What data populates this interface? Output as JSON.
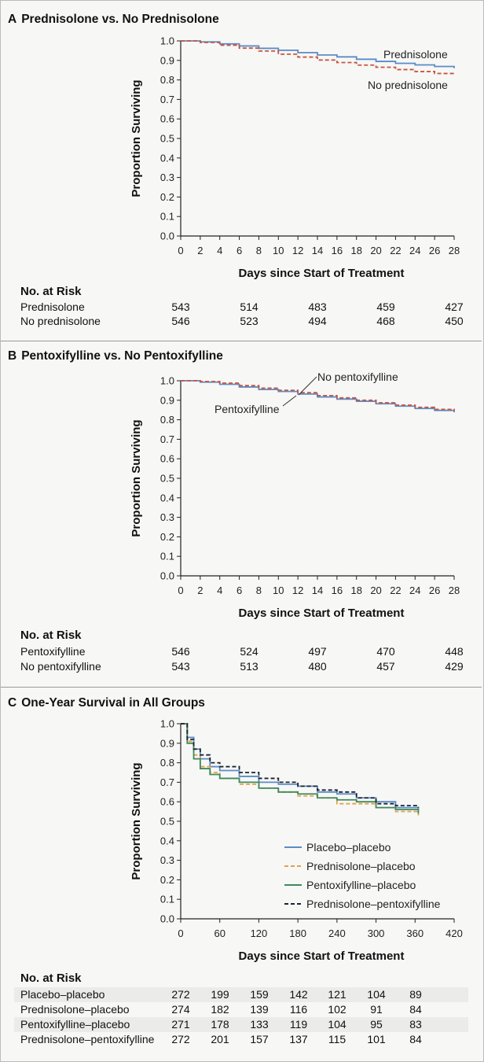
{
  "panels": [
    {
      "id": "A",
      "letter": "A",
      "title": "Prednisolone vs. No Prednisolone",
      "risk_title": "No. at Risk",
      "risk_rows": [
        {
          "label": "Prednisolone",
          "values": [
            "543",
            "514",
            "483",
            "459",
            "427"
          ]
        },
        {
          "label": "No prednisolone",
          "values": [
            "546",
            "523",
            "494",
            "468",
            "450"
          ]
        }
      ]
    },
    {
      "id": "B",
      "letter": "B",
      "title": "Pentoxifylline vs. No Pentoxifylline",
      "risk_title": "No. at Risk",
      "risk_rows": [
        {
          "label": "Pentoxifylline",
          "values": [
            "546",
            "524",
            "497",
            "470",
            "448"
          ]
        },
        {
          "label": "No pentoxifylline",
          "values": [
            "543",
            "513",
            "480",
            "457",
            "429"
          ]
        }
      ]
    },
    {
      "id": "C",
      "letter": "C",
      "title": "One-Year Survival in All Groups",
      "risk_title": "No. at Risk",
      "risk_rows": [
        {
          "label": "Placebo–placebo",
          "values": [
            "272",
            "199",
            "159",
            "142",
            "121",
            "104",
            "89"
          ]
        },
        {
          "label": "Prednisolone–placebo",
          "values": [
            "274",
            "182",
            "139",
            "116",
            "102",
            "91",
            "84"
          ]
        },
        {
          "label": "Pentoxifylline–placebo",
          "values": [
            "271",
            "178",
            "133",
            "119",
            "104",
            "95",
            "83"
          ]
        },
        {
          "label": "Prednisolone–pentoxifylline",
          "values": [
            "272",
            "201",
            "157",
            "137",
            "115",
            "101",
            "84"
          ]
        }
      ]
    }
  ],
  "chart_data": [
    {
      "type": "line",
      "title": "Prednisolone vs. No Prednisolone",
      "xlabel": "Days since Start of Treatment",
      "ylabel": "Proportion Surviving",
      "xlim": [
        0,
        28
      ],
      "ylim": [
        0,
        1.0
      ],
      "xticks": [
        0,
        2,
        4,
        6,
        8,
        10,
        12,
        14,
        16,
        18,
        20,
        22,
        24,
        26,
        28
      ],
      "yticks": [
        "0.0",
        "0.1",
        "0.2",
        "0.3",
        "0.4",
        "0.5",
        "0.6",
        "0.7",
        "0.8",
        "0.9",
        "1.0"
      ],
      "legend": "inline labels at right",
      "series": [
        {
          "name": "Prednisolone",
          "color": "#5b8cc6",
          "style": "solid",
          "x": [
            0,
            2,
            4,
            6,
            8,
            10,
            12,
            14,
            16,
            18,
            20,
            22,
            24,
            26,
            28
          ],
          "y": [
            1.0,
            0.995,
            0.985,
            0.974,
            0.962,
            0.952,
            0.94,
            0.928,
            0.918,
            0.906,
            0.895,
            0.885,
            0.877,
            0.869,
            0.86
          ]
        },
        {
          "name": "No prednisolone",
          "color": "#c8553d",
          "style": "dashed",
          "x": [
            0,
            2,
            4,
            6,
            8,
            10,
            12,
            14,
            16,
            18,
            20,
            22,
            24,
            26,
            28
          ],
          "y": [
            1.0,
            0.992,
            0.978,
            0.963,
            0.948,
            0.932,
            0.917,
            0.902,
            0.889,
            0.876,
            0.865,
            0.853,
            0.843,
            0.833,
            0.825
          ]
        }
      ]
    },
    {
      "type": "line",
      "title": "Pentoxifylline vs. No Pentoxifylline",
      "xlabel": "Days since Start of Treatment",
      "ylabel": "Proportion Surviving",
      "xlim": [
        0,
        28
      ],
      "ylim": [
        0,
        1.0
      ],
      "xticks": [
        0,
        2,
        4,
        6,
        8,
        10,
        12,
        14,
        16,
        18,
        20,
        22,
        24,
        26,
        28
      ],
      "yticks": [
        "0.0",
        "0.1",
        "0.2",
        "0.3",
        "0.4",
        "0.5",
        "0.6",
        "0.7",
        "0.8",
        "0.9",
        "1.0"
      ],
      "legend": "inline labels",
      "series": [
        {
          "name": "Pentoxifylline",
          "color": "#5b8cc6",
          "style": "solid",
          "x": [
            0,
            2,
            4,
            6,
            8,
            10,
            12,
            14,
            16,
            18,
            20,
            22,
            24,
            26,
            28
          ],
          "y": [
            1.0,
            0.993,
            0.982,
            0.968,
            0.955,
            0.945,
            0.932,
            0.917,
            0.906,
            0.895,
            0.882,
            0.87,
            0.858,
            0.848,
            0.838
          ]
        },
        {
          "name": "No pentoxifylline",
          "color": "#c8553d",
          "style": "dashed",
          "x": [
            0,
            2,
            4,
            6,
            8,
            10,
            12,
            14,
            16,
            18,
            20,
            22,
            24,
            26,
            28
          ],
          "y": [
            1.0,
            0.996,
            0.988,
            0.975,
            0.962,
            0.951,
            0.939,
            0.924,
            0.912,
            0.9,
            0.887,
            0.875,
            0.864,
            0.853,
            0.845
          ]
        }
      ]
    },
    {
      "type": "line",
      "title": "One-Year Survival in All Groups",
      "xlabel": "Days since Start of Treatment",
      "ylabel": "Proportion Surviving",
      "xlim": [
        0,
        420
      ],
      "ylim": [
        0,
        1.0
      ],
      "xticks": [
        0,
        60,
        120,
        180,
        240,
        300,
        360,
        420
      ],
      "yticks": [
        "0.0",
        "0.1",
        "0.2",
        "0.3",
        "0.4",
        "0.5",
        "0.6",
        "0.7",
        "0.8",
        "0.9",
        "1.0"
      ],
      "legend": "lower-right",
      "series": [
        {
          "name": "Placebo–placebo",
          "color": "#5b8cc6",
          "style": "solid",
          "x": [
            0,
            10,
            20,
            30,
            45,
            60,
            90,
            120,
            150,
            180,
            210,
            240,
            270,
            300,
            330,
            365
          ],
          "y": [
            1.0,
            0.93,
            0.87,
            0.82,
            0.78,
            0.76,
            0.73,
            0.7,
            0.69,
            0.68,
            0.65,
            0.64,
            0.62,
            0.6,
            0.57,
            0.55
          ]
        },
        {
          "name": "Prednisolone–placebo",
          "color": "#e5a04b",
          "style": "dashed",
          "x": [
            0,
            10,
            20,
            30,
            45,
            60,
            90,
            120,
            150,
            180,
            210,
            240,
            270,
            300,
            330,
            365
          ],
          "y": [
            1.0,
            0.91,
            0.84,
            0.78,
            0.75,
            0.72,
            0.69,
            0.67,
            0.65,
            0.63,
            0.62,
            0.59,
            0.59,
            0.57,
            0.55,
            0.53
          ]
        },
        {
          "name": "Pentoxifylline–placebo",
          "color": "#3e8a5a",
          "style": "solid",
          "x": [
            0,
            10,
            20,
            30,
            45,
            60,
            90,
            120,
            150,
            180,
            210,
            240,
            270,
            300,
            330,
            365
          ],
          "y": [
            1.0,
            0.9,
            0.82,
            0.77,
            0.74,
            0.72,
            0.7,
            0.67,
            0.65,
            0.64,
            0.62,
            0.61,
            0.6,
            0.57,
            0.56,
            0.54
          ]
        },
        {
          "name": "Prednisolone–pentoxifylline",
          "color": "#1a2430",
          "style": "dashed",
          "x": [
            0,
            10,
            20,
            30,
            45,
            60,
            90,
            120,
            150,
            180,
            210,
            240,
            270,
            300,
            330,
            365
          ],
          "y": [
            1.0,
            0.92,
            0.87,
            0.84,
            0.8,
            0.78,
            0.75,
            0.72,
            0.7,
            0.68,
            0.66,
            0.65,
            0.62,
            0.59,
            0.58,
            0.57
          ]
        }
      ]
    }
  ]
}
